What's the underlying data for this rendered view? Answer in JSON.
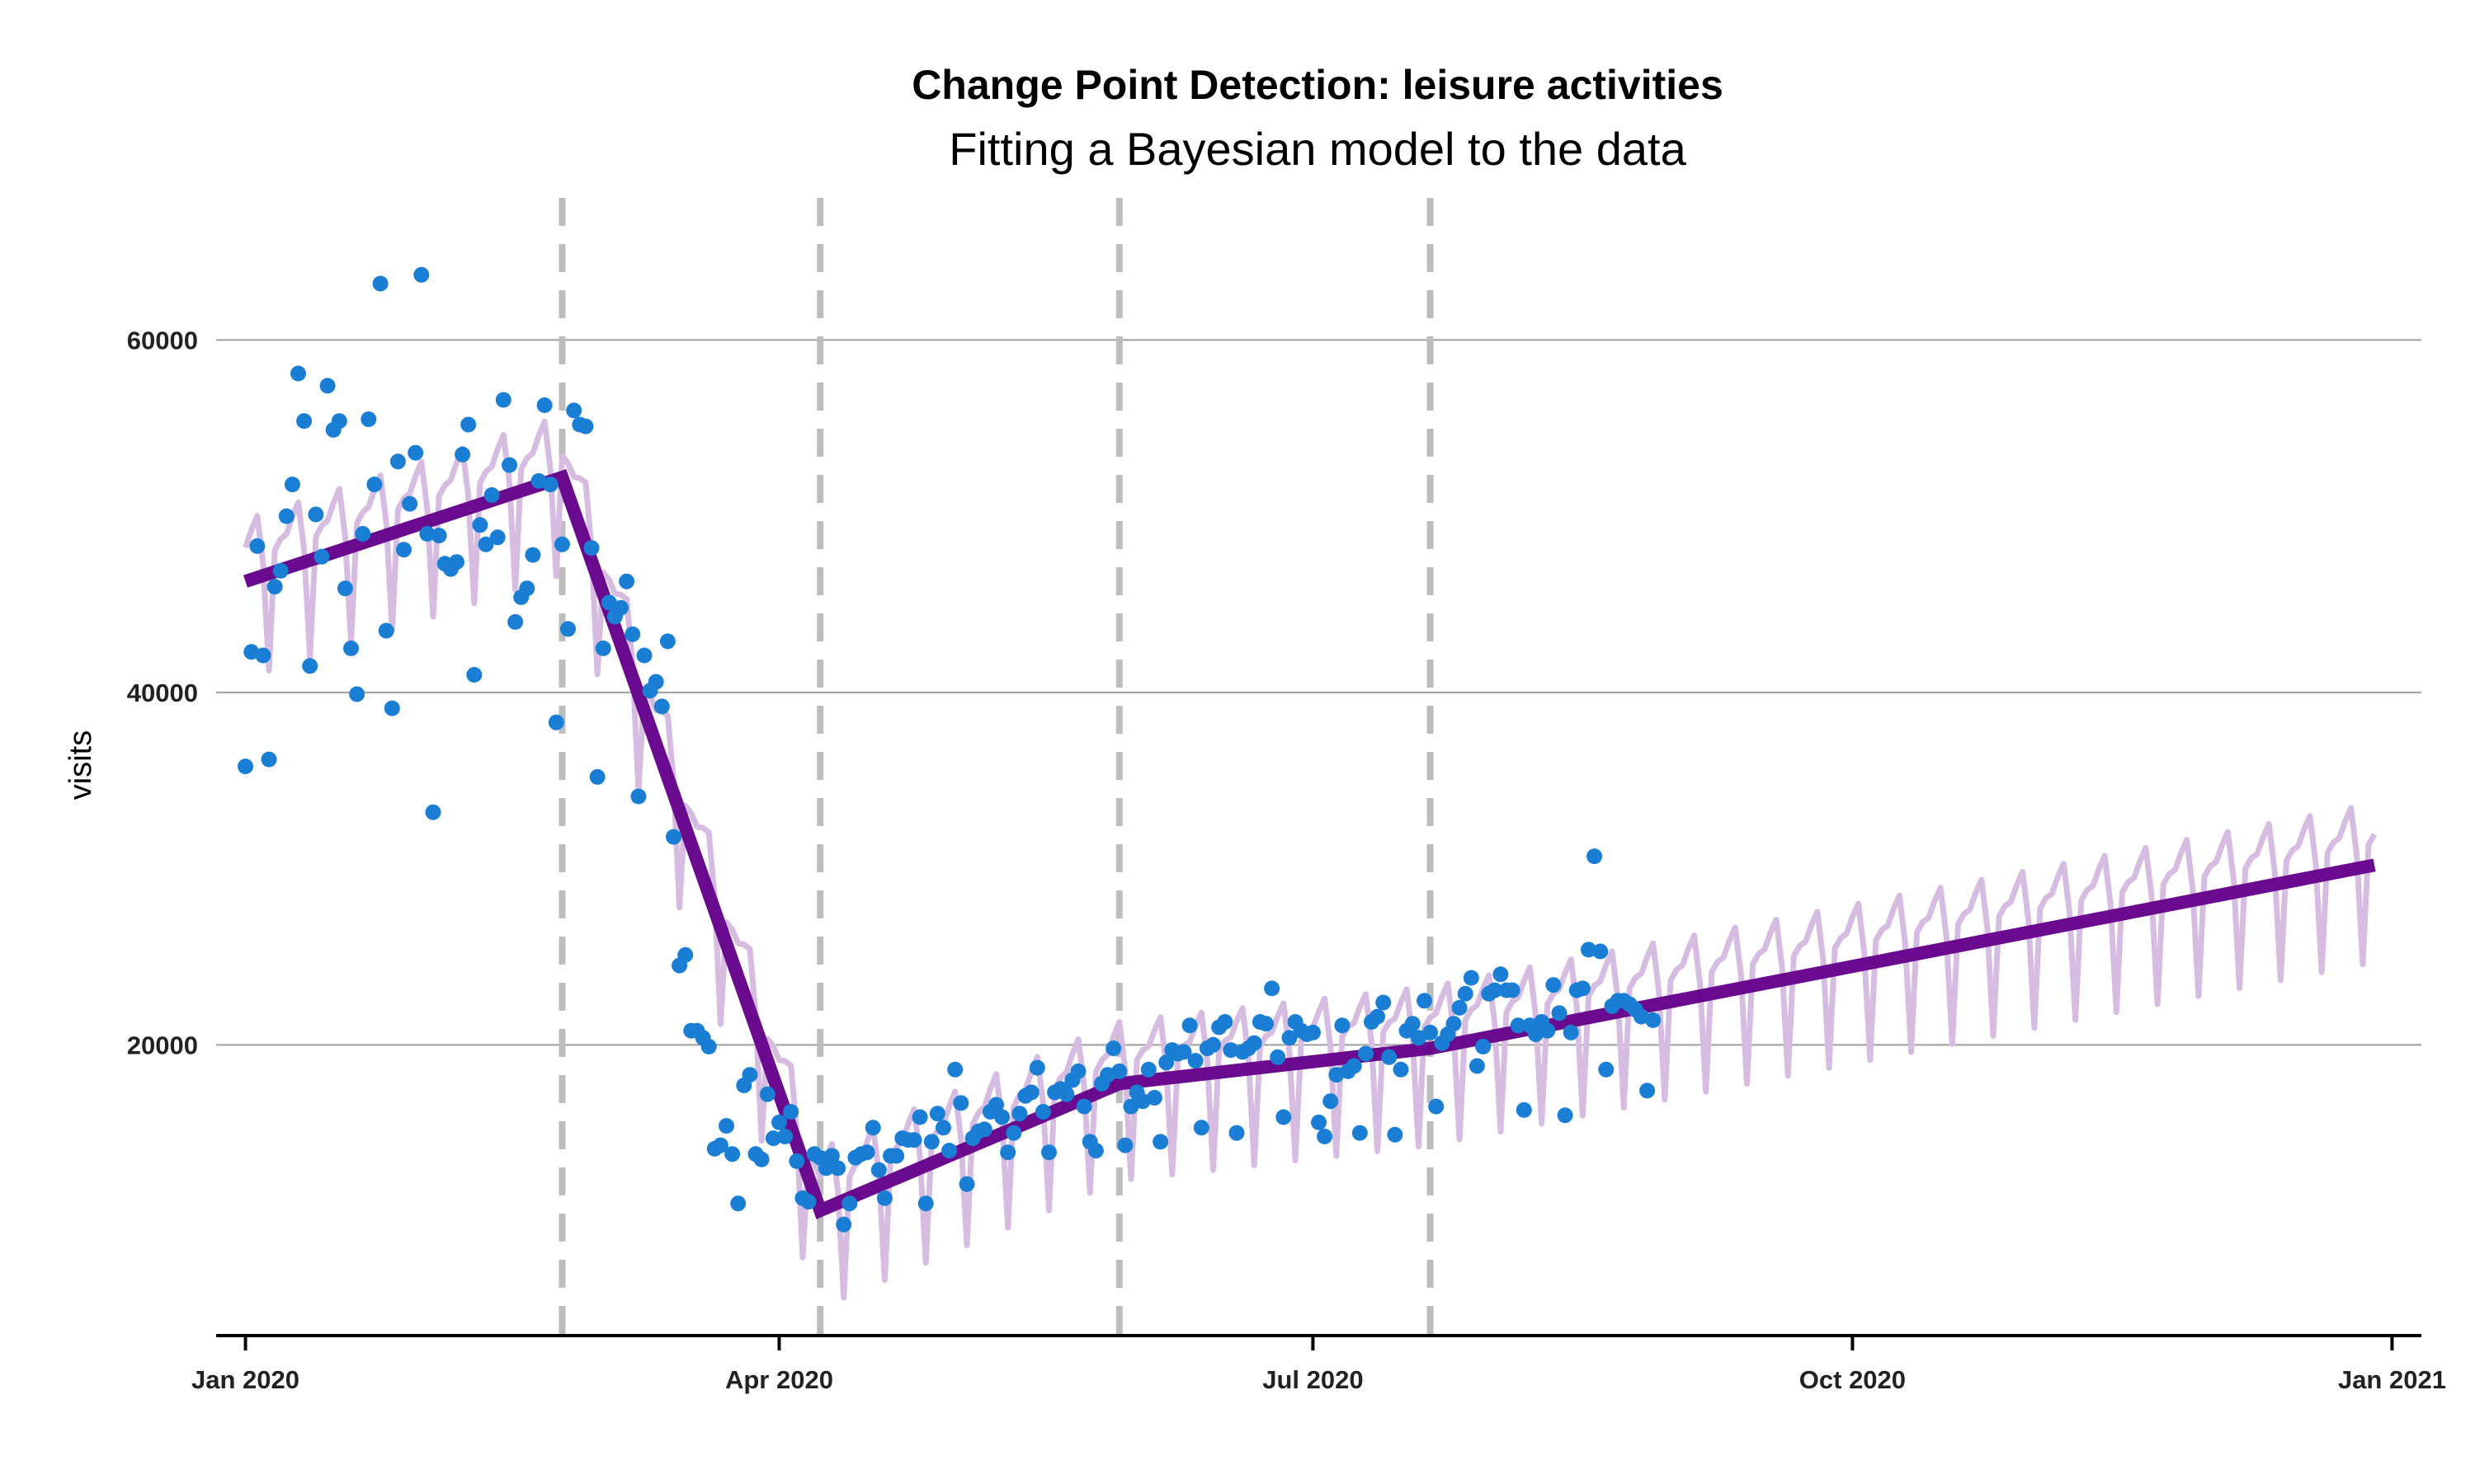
{
  "chart_data": {
    "type": "line",
    "title": "Change Point Detection: leisure activities",
    "subtitle": "Fitting a Bayesian model to the data",
    "xlabel": "",
    "ylabel": "visits",
    "x_range": [
      "2019-12-27",
      "2021-01-06"
    ],
    "ylim": [
      3500,
      69000
    ],
    "y_ticks": [
      20000,
      40000,
      60000
    ],
    "y_tick_labels": [
      "20000",
      "40000",
      "60000"
    ],
    "x_ticks": [
      "2020-01-01",
      "2020-04-01",
      "2020-07-01",
      "2020-10-01",
      "2021-01-01"
    ],
    "x_tick_labels": [
      "Jan 2020",
      "Apr 2020",
      "Jul 2020",
      "Oct 2020",
      "Jan 2021"
    ],
    "grid": "horizontal major",
    "change_points": [
      "2020-02-24",
      "2020-04-08",
      "2020-05-29",
      "2020-07-21"
    ],
    "colors": {
      "observed": "#1a7fd4",
      "trend": "#6a0a8e",
      "seasonal_fit": "#d7bce2",
      "change_point": "#bdbdbd",
      "grid": "#9e9e9e",
      "axis": "#000000"
    },
    "series": [
      {
        "name": "trend",
        "type": "line",
        "x": [
          "2020-01-01",
          "2020-02-24",
          "2020-04-08",
          "2020-05-29",
          "2020-07-21",
          "2020-12-29"
        ],
        "y": [
          46300,
          52200,
          10600,
          17800,
          19800,
          30200
        ]
      },
      {
        "name": "fit",
        "type": "line",
        "weekly_amplitude": {
          "high": 3500,
          "low": -5500
        },
        "x_start": "2020-01-01",
        "x_end": "2020-12-29"
      },
      {
        "name": "observed",
        "type": "scatter",
        "x_start": "2020-01-01",
        "y": [
          35800,
          42300,
          48300,
          42100,
          36200,
          46000,
          46900,
          50000,
          51800,
          58100,
          55400,
          41500,
          50100,
          47700,
          57400,
          54900,
          55400,
          45900,
          42500,
          39900,
          49000,
          55500,
          51800,
          63200,
          43500,
          39100,
          53100,
          48100,
          50700,
          53600,
          63700,
          49000,
          33200,
          48900,
          47300,
          47000,
          47400,
          53500,
          55200,
          41000,
          49500,
          48400,
          51200,
          48800,
          56600,
          52900,
          44000,
          45400,
          45900,
          47800,
          52000,
          56300,
          51800,
          38300,
          48400,
          43600,
          56000,
          55200,
          55100,
          48200,
          35200,
          42500,
          45100,
          44300,
          44800,
          46300,
          43300,
          34100,
          42100,
          40100,
          40600,
          39200,
          42900,
          31800,
          24500,
          25100,
          20800,
          20800,
          20400,
          19900,
          14100,
          14300,
          15400,
          13800,
          11000,
          17700,
          18300,
          13800,
          13500,
          17200,
          14700,
          15600,
          14800,
          16200,
          13400,
          11300,
          11100,
          13800,
          13600,
          13000,
          13700,
          13000,
          9800,
          11000,
          13600,
          13800,
          13900,
          15300,
          12900,
          11300,
          13700,
          13700,
          14700,
          14600,
          14600,
          15900,
          11000,
          14500,
          16100,
          15300,
          14000,
          18600,
          16700,
          12100,
          14700,
          15100,
          15200,
          16200,
          16600,
          15900,
          13900,
          15000,
          16100,
          17100,
          17300,
          18700,
          16200,
          13900,
          17300,
          17500,
          17200,
          18000,
          18500,
          16500,
          14500,
          14000,
          17800,
          18300,
          19800,
          18500,
          14300,
          16500,
          17300,
          16800,
          18600,
          17000,
          14500,
          19000,
          19700,
          19500,
          19600,
          21100,
          19100,
          15300,
          19800,
          20000,
          21000,
          21300,
          19700,
          15000,
          19600,
          19800,
          20100,
          21300,
          21200,
          23200,
          19300,
          15900,
          20400,
          21300,
          20800,
          20600,
          20700,
          15600,
          14800,
          16800,
          18300,
          21100,
          18500,
          18800,
          15000,
          19500,
          21300,
          21600,
          22400,
          19300,
          14900,
          18600,
          20800,
          21200,
          20400,
          22500,
          20700,
          16500,
          20100,
          20600,
          21200,
          22100,
          22900,
          23800,
          18800,
          19900,
          22900,
          23100,
          24000,
          23100,
          23100,
          21100,
          16300,
          21100,
          20600,
          21300,
          20800,
          23400,
          21800,
          16000,
          20700,
          23100,
          23200,
          25400,
          30700,
          25300,
          18600,
          22200,
          22500,
          22500,
          22300,
          22000,
          21600,
          17400,
          21400
        ]
      }
    ]
  }
}
